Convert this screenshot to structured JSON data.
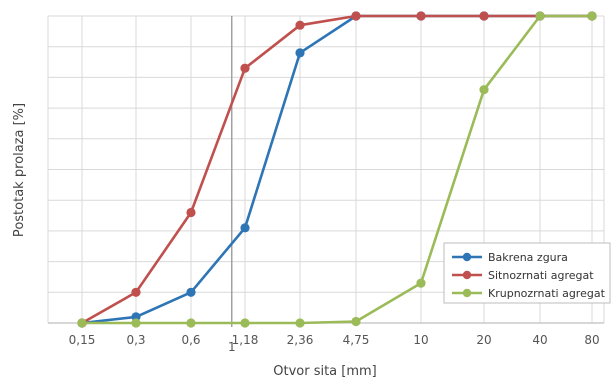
{
  "chart_data": {
    "type": "line",
    "title": "",
    "xlabel": "Otvor sita [mm]",
    "ylabel": "Postotak prolaza [%]",
    "x_scale": "log",
    "ylim": [
      0,
      100
    ],
    "xlim": [
      0.15,
      80
    ],
    "y_ticks": [
      0,
      10,
      20,
      30,
      40,
      50,
      60,
      70,
      80,
      90,
      100
    ],
    "y_tick_labels_shown": false,
    "x_ticks": [
      0.15,
      0.3,
      0.6,
      1.18,
      2.36,
      4.75,
      10,
      20,
      40,
      80
    ],
    "x_tick_labels": [
      "0,15",
      "0,3",
      "0,6",
      "1,18",
      "2,36",
      "4,75",
      "10",
      "20",
      "40",
      "80"
    ],
    "reference_line": {
      "x": 1,
      "label": "1"
    },
    "grid": true,
    "legend_position": "bottom-right",
    "series": [
      {
        "name": "Bakrena zgura",
        "color": "#2e75b6",
        "x": [
          0.15,
          0.3,
          0.6,
          1.18,
          2.36,
          4.75,
          10,
          20,
          40,
          80
        ],
        "y": [
          0,
          2,
          10,
          31,
          88,
          100,
          100,
          100,
          100,
          100
        ]
      },
      {
        "name": "Sitnozrnati agregat",
        "color": "#c0504d",
        "x": [
          0.15,
          0.3,
          0.6,
          1.18,
          2.36,
          4.75,
          10,
          20,
          40,
          80
        ],
        "y": [
          0,
          10,
          36,
          83,
          97,
          100,
          100,
          100,
          100,
          100
        ]
      },
      {
        "name": "Krupnozrnati agregat",
        "color": "#9bbb59",
        "x": [
          0.15,
          0.3,
          0.6,
          1.18,
          2.36,
          4.75,
          10,
          20,
          40,
          80
        ],
        "y": [
          0,
          0,
          0,
          0,
          0,
          0.5,
          13,
          76,
          100,
          100
        ]
      }
    ]
  }
}
